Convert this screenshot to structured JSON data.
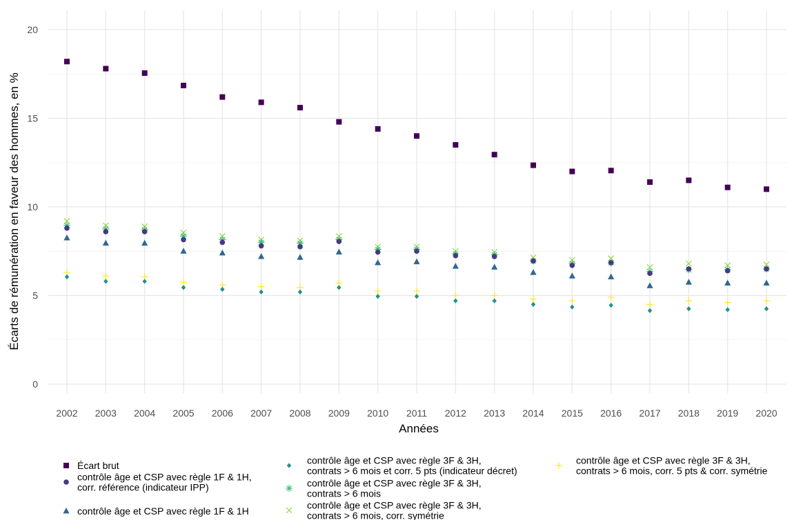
{
  "chart_data": {
    "type": "scatter",
    "xlabel": "Années",
    "ylabel": "Écarts de rémunération en faveur des hommes, en %",
    "ylim": [
      0,
      20
    ],
    "yticks": [
      0,
      5,
      10,
      15,
      20
    ],
    "grid": true,
    "legend_position": "bottom",
    "x": [
      2002,
      2003,
      2004,
      2005,
      2006,
      2007,
      2008,
      2009,
      2010,
      2011,
      2012,
      2013,
      2014,
      2015,
      2016,
      2017,
      2018,
      2019,
      2020
    ],
    "series": [
      {
        "name": "Écart brut",
        "marker": "square",
        "color": "#440154",
        "values": [
          18.2,
          17.8,
          17.55,
          16.85,
          16.2,
          15.9,
          15.6,
          14.8,
          14.4,
          14.0,
          13.5,
          12.95,
          12.35,
          12.0,
          12.05,
          11.4,
          11.5,
          11.1,
          11.0
        ]
      },
      {
        "name": "contrôle âge et CSP avec règle 1F & 1H, corr. référence (indicateur IPP)",
        "marker": "circle",
        "color": "#443A83",
        "values": [
          8.8,
          8.6,
          8.6,
          8.15,
          8.0,
          7.8,
          7.75,
          8.05,
          7.45,
          7.5,
          7.25,
          7.2,
          6.95,
          6.7,
          6.85,
          6.25,
          6.5,
          6.4,
          6.5
        ]
      },
      {
        "name": "contrôle âge et CSP avec règle 1F & 1H",
        "marker": "triangle",
        "color": "#31688E",
        "values": [
          8.25,
          7.95,
          7.95,
          7.5,
          7.4,
          7.2,
          7.15,
          7.45,
          6.85,
          6.9,
          6.65,
          6.6,
          6.3,
          6.1,
          6.05,
          5.55,
          5.75,
          5.7,
          5.7
        ]
      },
      {
        "name": "contrôle âge et CSP avec règle 3F & 3H, contrats > 6 mois et corr. 5 pts (indicateur décret)",
        "marker": "diamond",
        "color": "#21908D",
        "values": [
          6.05,
          5.8,
          5.8,
          5.45,
          5.35,
          5.2,
          5.2,
          5.45,
          4.95,
          4.95,
          4.7,
          4.7,
          4.5,
          4.35,
          4.45,
          4.15,
          4.25,
          4.2,
          4.25
        ]
      },
      {
        "name": "contrôle âge et CSP avec règle 3F & 3H, contrats > 6 mois",
        "marker": "asterisk",
        "color": "#35B779",
        "values": [
          8.95,
          8.75,
          8.7,
          8.35,
          8.15,
          8.0,
          7.95,
          8.15,
          7.6,
          7.6,
          7.35,
          7.3,
          6.95,
          6.8,
          6.85,
          6.35,
          6.45,
          6.45,
          6.5
        ]
      },
      {
        "name": "contrôle âge et CSP avec règle 3F & 3H, contrats > 6 mois, corr. symétrie",
        "marker": "x",
        "color": "#8FD744",
        "values": [
          9.2,
          8.95,
          8.9,
          8.55,
          8.35,
          8.15,
          8.1,
          8.35,
          7.75,
          7.75,
          7.5,
          7.45,
          7.15,
          7.0,
          7.1,
          6.6,
          6.8,
          6.7,
          6.75
        ]
      },
      {
        "name": "contrôle âge et CSP avec règle 3F & 3H, contrats > 6 mois, corr. 5 pts & corr. symétrie",
        "marker": "plus",
        "color": "#FDE725",
        "values": [
          6.3,
          6.1,
          6.05,
          5.75,
          5.6,
          5.5,
          5.45,
          5.7,
          5.25,
          5.25,
          5.0,
          5.0,
          4.8,
          4.7,
          4.9,
          4.5,
          4.7,
          4.6,
          4.7
        ]
      }
    ],
    "legend_lines": [
      [
        "Écart brut"
      ],
      [
        "contrôle âge et CSP avec règle 1F & 1H,",
        "corr. référence (indicateur IPP)"
      ],
      [
        "contrôle âge et CSP avec règle 1F & 1H"
      ],
      [
        "contrôle âge et CSP avec règle 3F & 3H,",
        "contrats > 6 mois et corr. 5 pts (indicateur décret)"
      ],
      [
        "contrôle âge et CSP avec règle 3F & 3H,",
        "contrats > 6 mois"
      ],
      [
        "contrôle âge et CSP avec règle 3F & 3H,",
        "contrats > 6 mois, corr. symétrie"
      ],
      [
        "contrôle âge et CSP avec règle 3F & 3H,",
        "contrats > 6 mois, corr. 5 pts & corr. symétrie"
      ]
    ]
  }
}
